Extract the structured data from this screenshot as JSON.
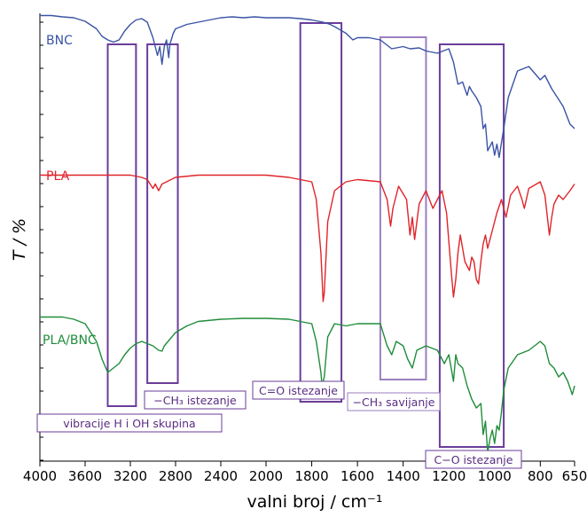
{
  "chart_data": {
    "type": "line",
    "xlabel": "valni broj / cm⁻¹",
    "ylabel": "T / %",
    "xlim": [
      4000,
      650
    ],
    "x_reversed": true,
    "x_ticks": [
      4000,
      3600,
      3200,
      2800,
      2400,
      2000,
      1800,
      1600,
      1400,
      1200,
      1000,
      800,
      650
    ],
    "x_tick_labels": [
      "4000",
      "3600",
      "3200",
      "2800",
      "2400",
      "2000",
      "1800",
      "1600",
      "1400",
      "1200",
      "1000",
      "800",
      "650"
    ],
    "y_tick_labels_shown": false,
    "grid": false,
    "series": [
      {
        "name": "BNC",
        "color": "#3a54a4",
        "points": [
          [
            4000,
            0.05
          ],
          [
            3900,
            0.05
          ],
          [
            3800,
            0.08
          ],
          [
            3700,
            0.1
          ],
          [
            3600,
            0.18
          ],
          [
            3500,
            0.35
          ],
          [
            3450,
            0.52
          ],
          [
            3400,
            0.6
          ],
          [
            3350,
            0.65
          ],
          [
            3300,
            0.6
          ],
          [
            3250,
            0.4
          ],
          [
            3200,
            0.25
          ],
          [
            3150,
            0.15
          ],
          [
            3100,
            0.12
          ],
          [
            3050,
            0.2
          ],
          [
            3000,
            0.55
          ],
          [
            2960,
            0.95
          ],
          [
            2940,
            0.75
          ],
          [
            2920,
            1.15
          ],
          [
            2900,
            0.75
          ],
          [
            2880,
            0.6
          ],
          [
            2860,
            1.0
          ],
          [
            2850,
            0.7
          ],
          [
            2820,
            0.45
          ],
          [
            2800,
            0.35
          ],
          [
            2700,
            0.25
          ],
          [
            2600,
            0.2
          ],
          [
            2400,
            0.1
          ],
          [
            2300,
            0.08
          ],
          [
            2200,
            0.1
          ],
          [
            2100,
            0.08
          ],
          [
            2000,
            0.1
          ],
          [
            1900,
            0.1
          ],
          [
            1850,
            0.12
          ],
          [
            1800,
            0.15
          ],
          [
            1750,
            0.2
          ],
          [
            1720,
            0.25
          ],
          [
            1700,
            0.3
          ],
          [
            1650,
            0.45
          ],
          [
            1620,
            0.6
          ],
          [
            1600,
            0.55
          ],
          [
            1550,
            0.55
          ],
          [
            1500,
            0.6
          ],
          [
            1450,
            0.8
          ],
          [
            1400,
            0.75
          ],
          [
            1370,
            0.8
          ],
          [
            1330,
            0.78
          ],
          [
            1300,
            0.85
          ],
          [
            1250,
            0.9
          ],
          [
            1200,
            0.8
          ],
          [
            1180,
            1.1
          ],
          [
            1160,
            1.6
          ],
          [
            1140,
            1.55
          ],
          [
            1120,
            1.85
          ],
          [
            1110,
            1.65
          ],
          [
            1100,
            1.75
          ],
          [
            1080,
            1.9
          ],
          [
            1060,
            2.1
          ],
          [
            1050,
            2.6
          ],
          [
            1040,
            2.5
          ],
          [
            1030,
            3.1
          ],
          [
            1010,
            2.9
          ],
          [
            1000,
            3.2
          ],
          [
            990,
            2.95
          ],
          [
            980,
            3.25
          ],
          [
            960,
            2.6
          ],
          [
            940,
            1.9
          ],
          [
            900,
            1.3
          ],
          [
            850,
            1.2
          ],
          [
            800,
            1.5
          ],
          [
            780,
            1.4
          ],
          [
            750,
            1.7
          ],
          [
            700,
            2.1
          ],
          [
            670,
            2.5
          ],
          [
            650,
            2.6
          ]
        ]
      },
      {
        "name": "PLA",
        "color": "#e0242a",
        "points": [
          [
            4000,
            3.65
          ],
          [
            3800,
            3.65
          ],
          [
            3600,
            3.65
          ],
          [
            3400,
            3.65
          ],
          [
            3200,
            3.65
          ],
          [
            3100,
            3.7
          ],
          [
            3050,
            3.75
          ],
          [
            3000,
            3.95
          ],
          [
            2980,
            3.85
          ],
          [
            2950,
            4.0
          ],
          [
            2920,
            3.85
          ],
          [
            2880,
            3.8
          ],
          [
            2800,
            3.7
          ],
          [
            2600,
            3.65
          ],
          [
            2400,
            3.65
          ],
          [
            2200,
            3.65
          ],
          [
            2000,
            3.65
          ],
          [
            1900,
            3.7
          ],
          [
            1850,
            3.75
          ],
          [
            1800,
            3.8
          ],
          [
            1780,
            4.2
          ],
          [
            1760,
            5.4
          ],
          [
            1750,
            6.5
          ],
          [
            1745,
            6.3
          ],
          [
            1730,
            4.7
          ],
          [
            1700,
            4.0
          ],
          [
            1650,
            3.8
          ],
          [
            1600,
            3.75
          ],
          [
            1500,
            3.8
          ],
          [
            1470,
            4.2
          ],
          [
            1455,
            4.8
          ],
          [
            1445,
            4.4
          ],
          [
            1420,
            3.9
          ],
          [
            1385,
            4.2
          ],
          [
            1370,
            5.0
          ],
          [
            1360,
            4.6
          ],
          [
            1350,
            5.1
          ],
          [
            1330,
            4.3
          ],
          [
            1300,
            4.0
          ],
          [
            1270,
            4.4
          ],
          [
            1250,
            4.2
          ],
          [
            1230,
            4.0
          ],
          [
            1210,
            4.5
          ],
          [
            1190,
            5.8
          ],
          [
            1180,
            6.4
          ],
          [
            1170,
            6.0
          ],
          [
            1160,
            5.4
          ],
          [
            1150,
            5.0
          ],
          [
            1130,
            5.6
          ],
          [
            1110,
            5.8
          ],
          [
            1100,
            5.5
          ],
          [
            1090,
            5.6
          ],
          [
            1080,
            6.0
          ],
          [
            1070,
            6.1
          ],
          [
            1060,
            5.6
          ],
          [
            1050,
            5.2
          ],
          [
            1040,
            5.0
          ],
          [
            1030,
            5.3
          ],
          [
            1010,
            4.9
          ],
          [
            990,
            4.5
          ],
          [
            970,
            4.2
          ],
          [
            950,
            4.6
          ],
          [
            930,
            4.1
          ],
          [
            900,
            3.9
          ],
          [
            880,
            4.2
          ],
          [
            870,
            4.4
          ],
          [
            850,
            3.95
          ],
          [
            800,
            3.8
          ],
          [
            780,
            4.1
          ],
          [
            760,
            5.0
          ],
          [
            750,
            4.6
          ],
          [
            740,
            4.3
          ],
          [
            720,
            4.1
          ],
          [
            700,
            4.2
          ],
          [
            670,
            4.0
          ],
          [
            650,
            3.85
          ]
        ]
      },
      {
        "name": "PLA/BNC",
        "color": "#1f8d3a",
        "points": [
          [
            4000,
            6.85
          ],
          [
            3900,
            6.85
          ],
          [
            3800,
            6.85
          ],
          [
            3700,
            6.9
          ],
          [
            3600,
            7.0
          ],
          [
            3550,
            7.2
          ],
          [
            3500,
            7.4
          ],
          [
            3450,
            7.8
          ],
          [
            3400,
            8.1
          ],
          [
            3350,
            8.0
          ],
          [
            3300,
            7.9
          ],
          [
            3250,
            7.7
          ],
          [
            3200,
            7.55
          ],
          [
            3150,
            7.45
          ],
          [
            3100,
            7.4
          ],
          [
            3050,
            7.45
          ],
          [
            3000,
            7.5
          ],
          [
            2950,
            7.6
          ],
          [
            2920,
            7.62
          ],
          [
            2900,
            7.5
          ],
          [
            2850,
            7.35
          ],
          [
            2800,
            7.2
          ],
          [
            2700,
            7.05
          ],
          [
            2600,
            6.95
          ],
          [
            2400,
            6.9
          ],
          [
            2200,
            6.88
          ],
          [
            2000,
            6.88
          ],
          [
            1900,
            6.9
          ],
          [
            1850,
            6.95
          ],
          [
            1800,
            7.0
          ],
          [
            1780,
            7.4
          ],
          [
            1760,
            8.1
          ],
          [
            1755,
            8.4
          ],
          [
            1745,
            8.2
          ],
          [
            1730,
            7.3
          ],
          [
            1700,
            7.0
          ],
          [
            1650,
            7.05
          ],
          [
            1600,
            7.0
          ],
          [
            1500,
            7.0
          ],
          [
            1470,
            7.5
          ],
          [
            1450,
            7.7
          ],
          [
            1430,
            7.4
          ],
          [
            1400,
            7.5
          ],
          [
            1380,
            7.8
          ],
          [
            1360,
            8.0
          ],
          [
            1340,
            7.6
          ],
          [
            1300,
            7.5
          ],
          [
            1250,
            7.6
          ],
          [
            1220,
            7.9
          ],
          [
            1200,
            7.7
          ],
          [
            1180,
            8.3
          ],
          [
            1170,
            7.7
          ],
          [
            1160,
            7.9
          ],
          [
            1140,
            8.0
          ],
          [
            1120,
            8.4
          ],
          [
            1100,
            8.7
          ],
          [
            1080,
            8.9
          ],
          [
            1060,
            8.8
          ],
          [
            1050,
            9.5
          ],
          [
            1040,
            9.2
          ],
          [
            1030,
            9.9
          ],
          [
            1020,
            9.6
          ],
          [
            1010,
            9.4
          ],
          [
            1000,
            9.7
          ],
          [
            990,
            9.3
          ],
          [
            980,
            9.4
          ],
          [
            970,
            9.0
          ],
          [
            960,
            8.5
          ],
          [
            940,
            8.0
          ],
          [
            900,
            7.7
          ],
          [
            850,
            7.6
          ],
          [
            800,
            7.4
          ],
          [
            780,
            7.5
          ],
          [
            760,
            7.9
          ],
          [
            740,
            8.0
          ],
          [
            720,
            8.2
          ],
          [
            700,
            8.1
          ],
          [
            680,
            8.3
          ],
          [
            660,
            8.6
          ],
          [
            650,
            8.4
          ]
        ]
      }
    ],
    "annotations": [
      {
        "label": "vibracije H i OH skupina",
        "x_range": [
          3400,
          3150
        ],
        "color": "#6a3d9a"
      },
      {
        "label": "−CH₃ istezanje",
        "x_range": [
          3050,
          2780
        ],
        "color": "#6a3d9a"
      },
      {
        "label": "C=O istezanje",
        "x_range": [
          1850,
          1670
        ],
        "color": "#6a3d9a"
      },
      {
        "label": "−CH₃ savijanje",
        "x_range": [
          1500,
          1300
        ],
        "color": "#9b7fc0"
      },
      {
        "label": "C−O istezanje",
        "x_range": [
          1240,
          960
        ],
        "color": "#6a3d9a"
      }
    ]
  }
}
